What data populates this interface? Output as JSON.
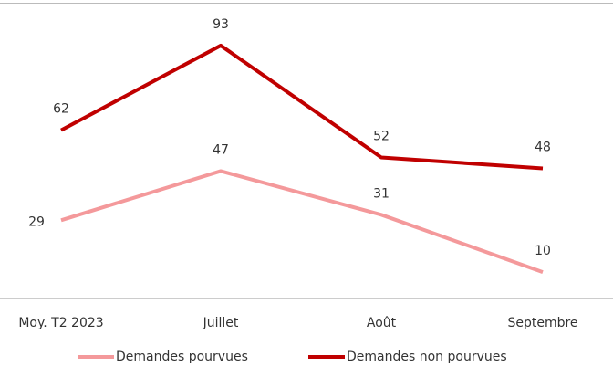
{
  "chart_data": {
    "type": "line",
    "categories": [
      "Moy. T2 2023",
      "Juillet",
      "Août",
      "Septembre"
    ],
    "series": [
      {
        "name": "Demandes pourvues",
        "color": "#f4999b",
        "values": [
          29,
          47,
          31,
          10
        ]
      },
      {
        "name": "Demandes non pourvues",
        "color": "#c00000",
        "values": [
          62,
          93,
          52,
          48
        ]
      }
    ],
    "legend": "bottom"
  }
}
